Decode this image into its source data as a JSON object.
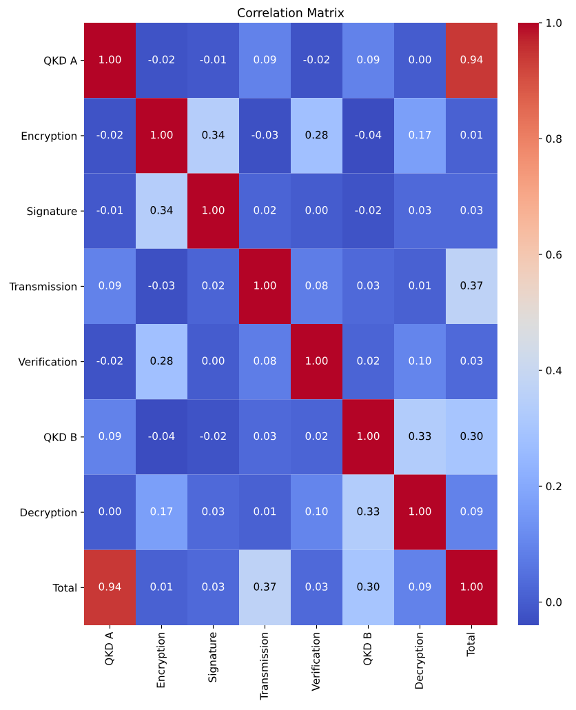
{
  "chart_data": {
    "type": "heatmap",
    "title": "Correlation Matrix",
    "categories": [
      "QKD A",
      "Encryption",
      "Signature",
      "Transmission",
      "Verification",
      "QKD B",
      "Decryption",
      "Total"
    ],
    "y_categories": [
      "QKD A",
      "Encryption",
      "Signature",
      "Transmission",
      "Verification",
      "QKD B",
      "Decryption",
      "Total"
    ],
    "cells": [
      [
        1.0,
        -0.02,
        -0.01,
        0.09,
        -0.02,
        0.09,
        0.0,
        0.94
      ],
      [
        -0.02,
        1.0,
        0.34,
        -0.03,
        0.28,
        -0.04,
        0.17,
        0.01
      ],
      [
        -0.01,
        0.34,
        1.0,
        0.02,
        0.0,
        -0.02,
        0.03,
        0.03
      ],
      [
        0.09,
        -0.03,
        0.02,
        1.0,
        0.08,
        0.03,
        0.01,
        0.37
      ],
      [
        -0.02,
        0.28,
        0.0,
        0.08,
        1.0,
        0.02,
        0.1,
        0.03
      ],
      [
        0.09,
        -0.04,
        -0.02,
        0.03,
        0.02,
        1.0,
        0.33,
        0.3
      ],
      [
        0.0,
        0.17,
        0.03,
        0.01,
        0.1,
        0.33,
        1.0,
        0.09
      ],
      [
        0.94,
        0.01,
        0.03,
        0.37,
        0.03,
        0.3,
        0.09,
        1.0
      ]
    ],
    "clim": [
      -0.04,
      1.0
    ],
    "cticks": [
      {
        "value": 0.0,
        "label": "0.0"
      },
      {
        "value": 0.2,
        "label": "0.2"
      },
      {
        "value": 0.4,
        "label": "0.4"
      },
      {
        "value": 0.6,
        "label": "0.6"
      },
      {
        "value": 0.8,
        "label": "0.8"
      },
      {
        "value": 1.0,
        "label": "1.0"
      }
    ],
    "cell_labels": [
      [
        "1.00",
        "-0.02",
        "-0.01",
        "0.09",
        "-0.02",
        "0.09",
        "0.00",
        "0.94"
      ],
      [
        "-0.02",
        "1.00",
        "0.34",
        "-0.03",
        "0.28",
        "-0.04",
        "0.17",
        "0.01"
      ],
      [
        "-0.01",
        "0.34",
        "1.00",
        "0.02",
        "0.00",
        "-0.02",
        "0.03",
        "0.03"
      ],
      [
        "0.09",
        "-0.03",
        "0.02",
        "1.00",
        "0.08",
        "0.03",
        "0.01",
        "0.37"
      ],
      [
        "-0.02",
        "0.28",
        "0.00",
        "0.08",
        "1.00",
        "0.02",
        "0.10",
        "0.03"
      ],
      [
        "0.09",
        "-0.04",
        "-0.02",
        "0.03",
        "0.02",
        "1.00",
        "0.33",
        "0.30"
      ],
      [
        "0.00",
        "0.17",
        "0.03",
        "0.01",
        "0.10",
        "0.33",
        "1.00",
        "0.09"
      ],
      [
        "0.94",
        "0.01",
        "0.03",
        "0.37",
        "0.03",
        "0.30",
        "0.09",
        "1.00"
      ]
    ]
  }
}
